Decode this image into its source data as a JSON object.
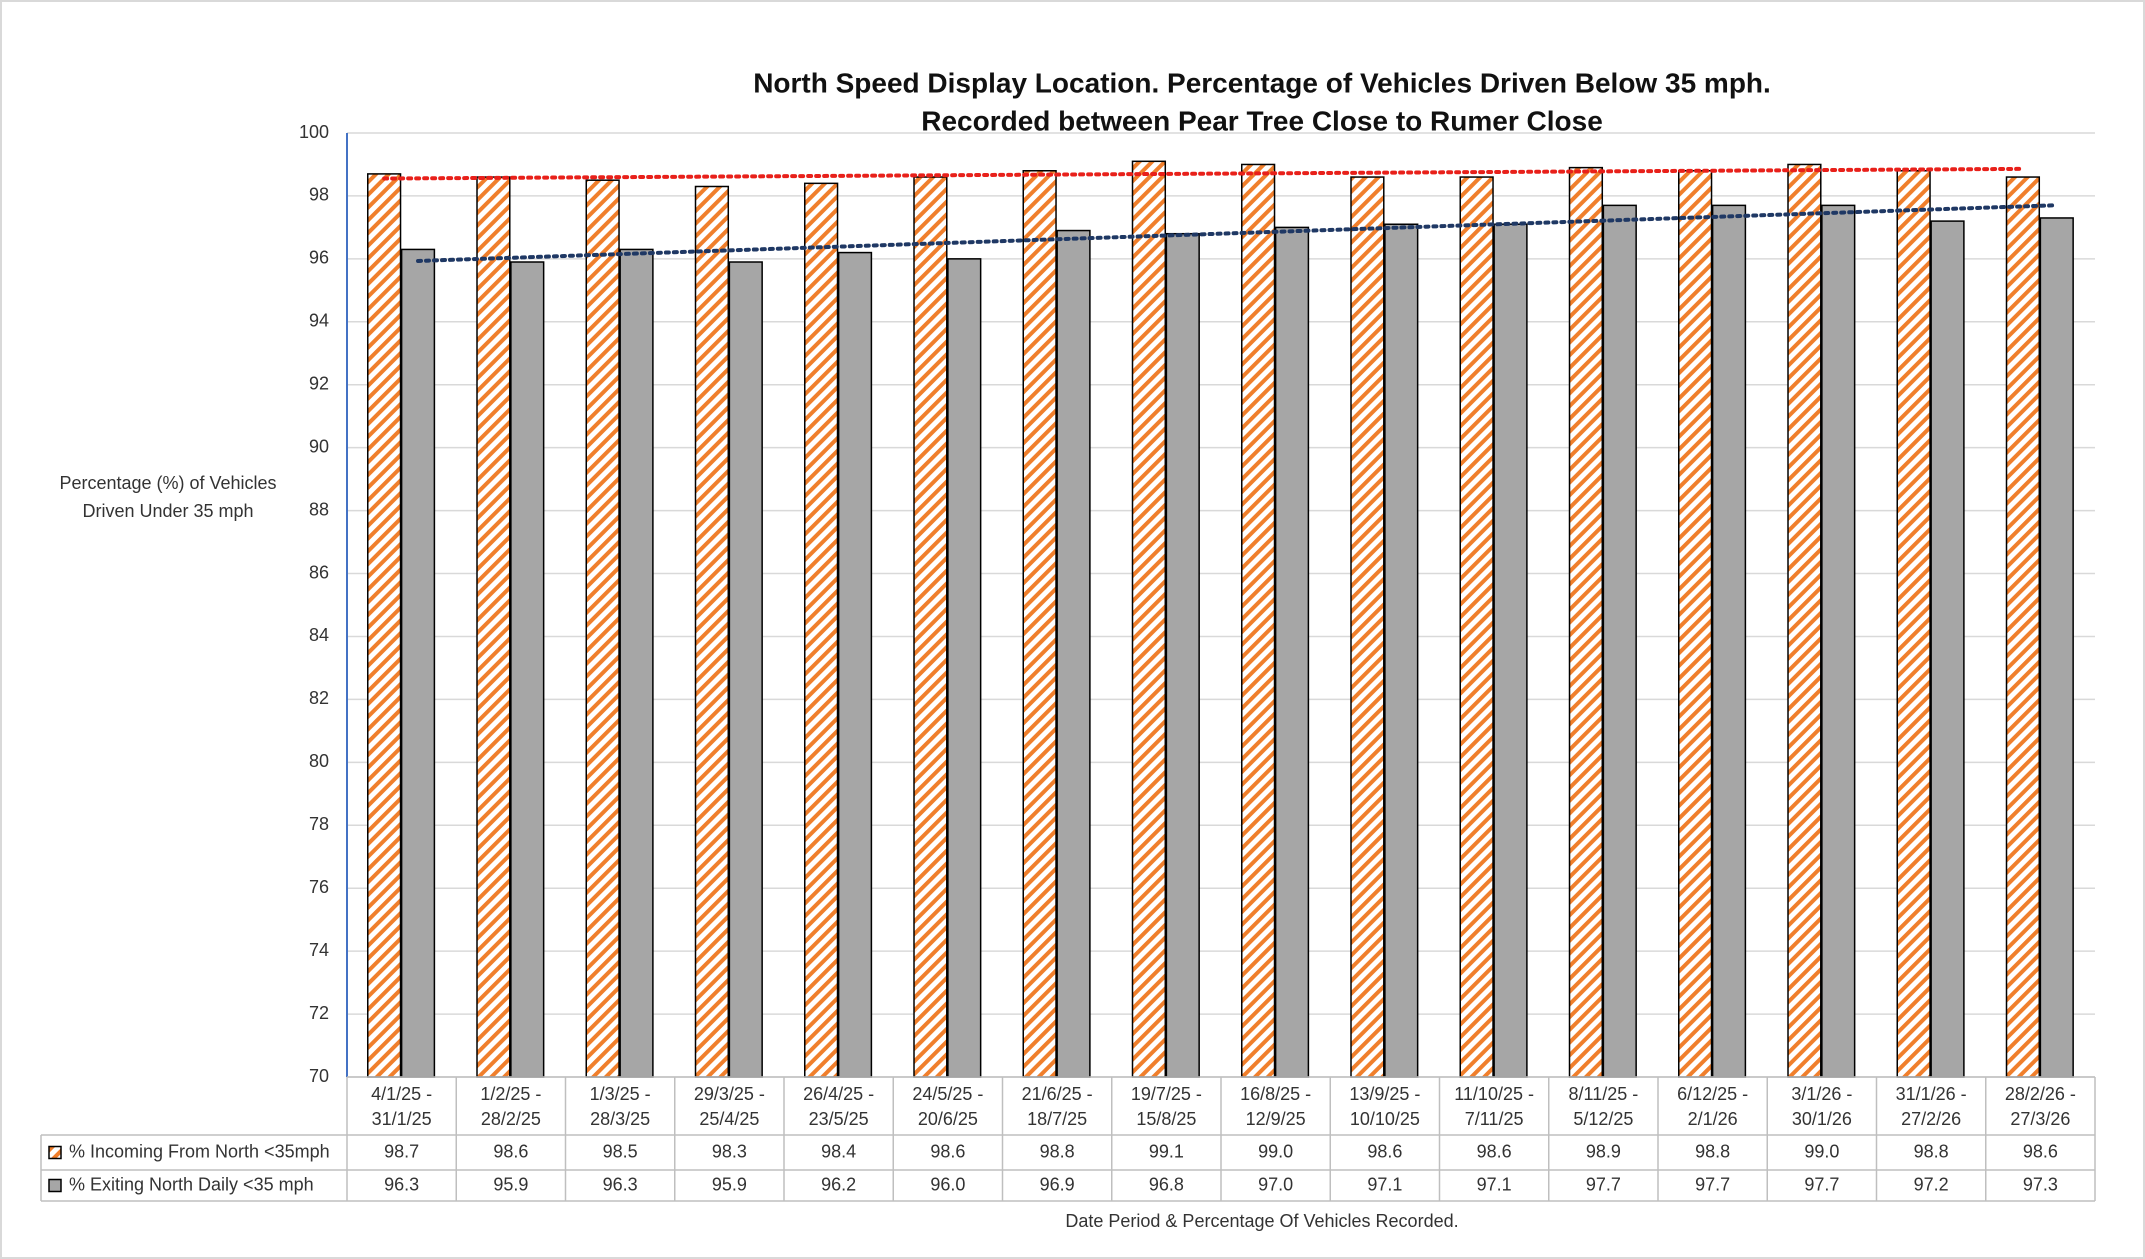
{
  "chart_data": {
    "type": "bar",
    "title": "North Speed Display Location. Percentage of Vehicles Driven Below 35 mph.",
    "subtitle": "Recorded between Pear Tree Close to Rumer Close",
    "y_label": [
      "Percentage (%) of Vehicles",
      "Driven Under 35 mph"
    ],
    "x_label": "Date Period & Percentage Of Vehicles Recorded.",
    "categories": [
      [
        "4/1/25 -",
        "31/1/25"
      ],
      [
        "1/2/25 -",
        "28/2/25"
      ],
      [
        "1/3/25 -",
        "28/3/25"
      ],
      [
        "29/3/25 -",
        "25/4/25"
      ],
      [
        "26/4/25 -",
        "23/5/25"
      ],
      [
        "24/5/25 -",
        "20/6/25"
      ],
      [
        "21/6/25 -",
        "18/7/25"
      ],
      [
        "19/7/25 -",
        "15/8/25"
      ],
      [
        "16/8/25 -",
        "12/9/25"
      ],
      [
        "13/9/25 -",
        "10/10/25"
      ],
      [
        "11/10/25 -",
        "7/11/25"
      ],
      [
        "8/11/25 -",
        "5/12/25"
      ],
      [
        "6/12/25 -",
        "2/1/26"
      ],
      [
        "3/1/26 -",
        "30/1/26"
      ],
      [
        "31/1/26 -",
        "27/2/26"
      ],
      [
        "28/2/26 -",
        "27/3/26"
      ]
    ],
    "series": [
      {
        "name": "% Incoming From North <35mph",
        "color": "#f07f2c",
        "pattern": "hatch",
        "trendline_color": "#e8201a",
        "values": [
          98.7,
          98.6,
          98.5,
          98.3,
          98.4,
          98.6,
          98.8,
          99.1,
          99.0,
          98.6,
          98.6,
          98.9,
          98.8,
          99.0,
          98.8,
          98.6
        ],
        "value_labels": [
          "98.7",
          "98.6",
          "98.5",
          "98.3",
          "98.4",
          "98.6",
          "98.8",
          "99.1",
          "99.0",
          "98.6",
          "98.6",
          "98.9",
          "98.8",
          "99.0",
          "98.8",
          "98.6"
        ]
      },
      {
        "name": "% Exiting North Daily <35 mph",
        "color": "#a6a6a6",
        "pattern": "solid",
        "trendline_color": "#1f3864",
        "values": [
          96.3,
          95.9,
          96.3,
          95.9,
          96.2,
          96.0,
          96.9,
          96.8,
          97.0,
          97.1,
          97.1,
          97.7,
          97.7,
          97.7,
          97.2,
          97.3
        ],
        "value_labels": [
          "96.3",
          "95.9",
          "96.3",
          "95.9",
          "96.2",
          "96.0",
          "96.9",
          "96.8",
          "97.0",
          "97.1",
          "97.1",
          "97.7",
          "97.7",
          "97.7",
          "97.2",
          "97.3"
        ]
      }
    ],
    "ylim": [
      70,
      100
    ],
    "yticks": [
      70,
      72,
      74,
      76,
      78,
      80,
      82,
      84,
      86,
      88,
      90,
      92,
      94,
      96,
      98,
      100
    ],
    "grid": true,
    "trendline": true,
    "data_table": true
  }
}
